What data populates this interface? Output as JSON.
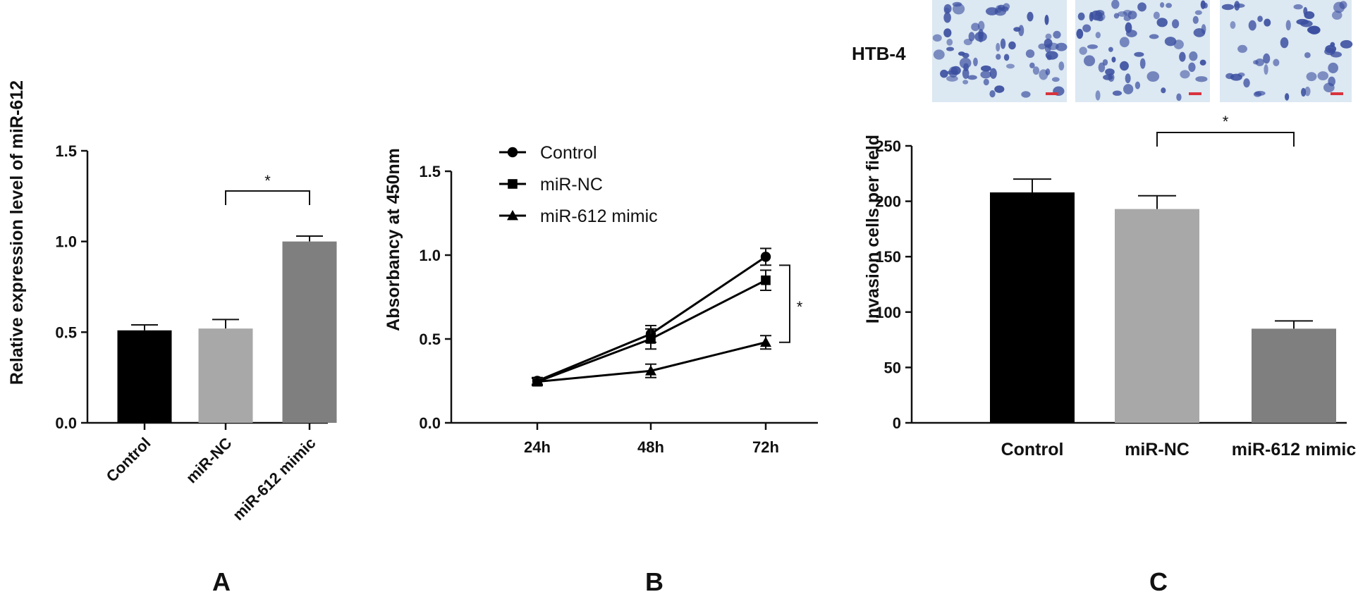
{
  "colors": {
    "control": "#000000",
    "mirnc": "#a8a8a8",
    "mimic": "#7f7f7f",
    "axis": "#111111",
    "micro_bg": "#dce8f2",
    "cell": "#3b4fa0",
    "scalebar": "#d8333d"
  },
  "chart_data": [
    {
      "id": "A",
      "panel_label": "A",
      "type": "bar",
      "categories": [
        "Control",
        "miR-NC",
        "miR-612 mimic"
      ],
      "values": [
        0.51,
        0.52,
        1.0
      ],
      "errors": [
        0.03,
        0.05,
        0.03
      ],
      "ylabel": "Relative  expression level of miR-612",
      "xlabel": "",
      "ylim": [
        0,
        1.5
      ],
      "yticks": [
        0,
        0.5,
        1.0,
        1.5
      ],
      "ytick_labels": [
        "0.0",
        "0.5",
        "1.0",
        "1.5"
      ],
      "significance": {
        "from": 1,
        "to": 2,
        "label": "*"
      }
    },
    {
      "id": "B",
      "panel_label": "B",
      "type": "line",
      "x": [
        "24h",
        "48h",
        "72h"
      ],
      "series": [
        {
          "name": "Control",
          "marker": "circle",
          "values": [
            0.25,
            0.53,
            0.99
          ],
          "errors": [
            0.02,
            0.05,
            0.05
          ]
        },
        {
          "name": "miR-NC",
          "marker": "square",
          "values": [
            0.245,
            0.5,
            0.85
          ],
          "errors": [
            0.02,
            0.06,
            0.06
          ]
        },
        {
          "name": "miR-612 mimic",
          "marker": "triangle",
          "values": [
            0.245,
            0.31,
            0.48
          ],
          "errors": [
            0.02,
            0.04,
            0.04
          ]
        }
      ],
      "ylabel": "Absorbancy at 450nm",
      "xlabel": "",
      "ylim": [
        0,
        1.5
      ],
      "yticks": [
        0,
        0.5,
        1.0,
        1.5
      ],
      "ytick_labels": [
        "0.0",
        "0.5",
        "1.0",
        "1.5"
      ],
      "legend_position": "top-left",
      "significance": {
        "label": "*"
      }
    },
    {
      "id": "C",
      "panel_label": "C",
      "type": "bar",
      "categories": [
        "Control",
        "miR-NC",
        "miR-612 mimic"
      ],
      "values": [
        208,
        193,
        85
      ],
      "errors": [
        12,
        12,
        7
      ],
      "ylabel": "Invasion cells per field",
      "xlabel": "",
      "ylim": [
        0,
        250
      ],
      "yticks": [
        0,
        50,
        100,
        150,
        200,
        250
      ],
      "ytick_labels": [
        "0",
        "50",
        "100",
        "150",
        "200",
        "250"
      ],
      "significance": {
        "from": 1,
        "to": 2,
        "label": "*"
      },
      "micrograph_label": "HTB-4",
      "micrographs": 3
    }
  ]
}
